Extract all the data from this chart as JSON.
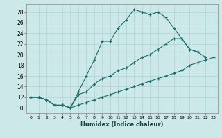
{
  "xlabel": "Humidex (Indice chaleur)",
  "bg_color": "#cce8e8",
  "line_color": "#1a6b6b",
  "grid_color": "#aad4d4",
  "xlim": [
    -0.5,
    23.5
  ],
  "ylim": [
    9,
    29.5
  ],
  "xticks": [
    0,
    1,
    2,
    3,
    4,
    5,
    6,
    7,
    8,
    9,
    10,
    11,
    12,
    13,
    14,
    15,
    16,
    17,
    18,
    19,
    20,
    21,
    22,
    23
  ],
  "yticks": [
    10,
    12,
    14,
    16,
    18,
    20,
    22,
    24,
    26,
    28
  ],
  "line1_x": [
    0,
    1,
    2,
    3,
    4,
    5,
    6,
    7,
    8,
    9,
    10,
    11,
    12,
    13,
    14,
    15,
    16,
    17,
    18,
    19,
    20,
    21,
    22
  ],
  "line1_y": [
    12,
    12,
    11.5,
    10.5,
    10.5,
    10,
    13,
    16,
    19,
    22.5,
    22.5,
    25,
    26.5,
    28.5,
    28,
    27.5,
    28,
    27,
    25,
    23,
    21,
    20.5,
    19.5
  ],
  "line2_x": [
    0,
    1,
    2,
    3,
    4,
    5,
    6,
    7,
    8,
    9,
    10,
    11,
    12,
    13,
    14,
    15,
    16,
    17,
    18,
    19,
    20,
    21
  ],
  "line2_y": [
    12,
    12,
    11.5,
    10.5,
    10.5,
    10,
    12.5,
    13,
    14.5,
    15.5,
    16,
    17,
    17.5,
    18.5,
    19.5,
    20,
    21,
    22,
    23,
    23,
    21,
    20.5
  ],
  "line3_x": [
    0,
    1,
    2,
    3,
    4,
    5,
    6,
    7,
    8,
    9,
    10,
    11,
    12,
    13,
    14,
    15,
    16,
    17,
    18,
    19,
    20,
    21,
    22,
    23
  ],
  "line3_y": [
    12,
    12,
    11.5,
    10.5,
    10.5,
    10,
    10.5,
    11,
    11.5,
    12,
    12.5,
    13,
    13.5,
    14,
    14.5,
    15,
    15.5,
    16,
    16.5,
    17,
    18,
    18.5,
    19,
    19.5
  ]
}
